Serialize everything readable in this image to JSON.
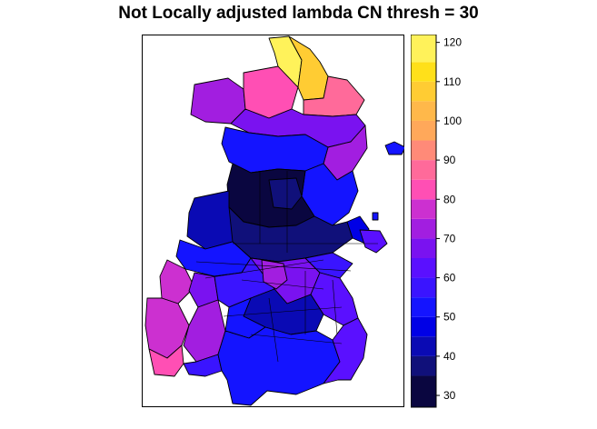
{
  "title": "Not Locally adjusted lambda CN thresh = 30",
  "legend": {
    "min": 27,
    "max": 122,
    "ticks": [
      "120",
      "110",
      "100",
      "90",
      "80",
      "70",
      "60",
      "50",
      "40",
      "30"
    ],
    "tick_values": [
      120,
      110,
      100,
      90,
      80,
      70,
      60,
      50,
      40,
      30
    ],
    "bands": [
      {
        "from": 27,
        "to": 35,
        "color": "#0a0640"
      },
      {
        "from": 35,
        "to": 40,
        "color": "#10107a"
      },
      {
        "from": 40,
        "to": 45,
        "color": "#0a0ab4"
      },
      {
        "from": 45,
        "to": 50,
        "color": "#0000e6"
      },
      {
        "from": 50,
        "to": 55,
        "color": "#1414ff"
      },
      {
        "from": 55,
        "to": 60,
        "color": "#3a14ff"
      },
      {
        "from": 60,
        "to": 65,
        "color": "#5a10ff"
      },
      {
        "from": 65,
        "to": 70,
        "color": "#7a12f0"
      },
      {
        "from": 70,
        "to": 75,
        "color": "#a21ee0"
      },
      {
        "from": 75,
        "to": 80,
        "color": "#cc30d0"
      },
      {
        "from": 80,
        "to": 85,
        "color": "#ff4fb4"
      },
      {
        "from": 85,
        "to": 90,
        "color": "#ff6a9a"
      },
      {
        "from": 90,
        "to": 95,
        "color": "#ff8a78"
      },
      {
        "from": 95,
        "to": 100,
        "color": "#ffa85a"
      },
      {
        "from": 100,
        "to": 105,
        "color": "#ffb84a"
      },
      {
        "from": 105,
        "to": 110,
        "color": "#ffcc33"
      },
      {
        "from": 110,
        "to": 115,
        "color": "#ffe01a"
      },
      {
        "from": 115,
        "to": 122,
        "color": "#fff25a"
      }
    ]
  }
}
